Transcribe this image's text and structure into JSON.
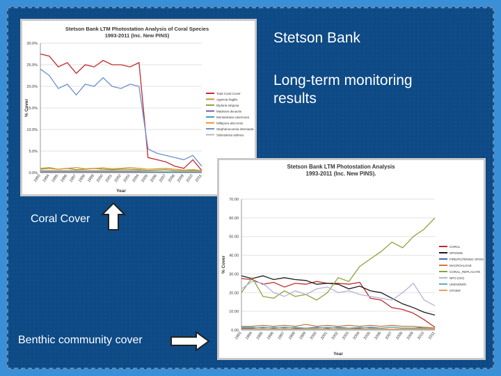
{
  "slide": {
    "heading": "Stetson Bank",
    "subheading_line1": "Long-term monitoring",
    "subheading_line2": "results",
    "label_coral": "Coral Cover",
    "label_benthic": "Benthic community cover"
  },
  "colors": {
    "background": "#0d4a86",
    "border": "#3b8fd6"
  },
  "chart_data": [
    {
      "type": "line",
      "title": "Stetson Bank LTM Photostation Analysis of Coral Species",
      "subtitle": "1993-2011 (Inc. New PINS)",
      "xlabel": "Year",
      "ylabel": "% Cover",
      "ylim": [
        0,
        30
      ],
      "yticks": [
        "0.0%",
        "5.0%",
        "10.0%",
        "15.0%",
        "20.0%",
        "25.0%",
        "30.0%"
      ],
      "categories": [
        "1993",
        "1994",
        "1995",
        "1996",
        "1997",
        "1998",
        "1999",
        "2000",
        "2001",
        "2002",
        "2003",
        "2004",
        "2005",
        "2006",
        "2007",
        "2008",
        "2009",
        "2010",
        "2011"
      ],
      "legend_position": "right",
      "series": [
        {
          "name": "Total Coral Cover",
          "color": "#c0282d",
          "values": [
            27.5,
            27.0,
            24.5,
            25.5,
            23.0,
            25.0,
            24.5,
            26.0,
            25.0,
            25.0,
            24.5,
            25.5,
            3.5,
            3.0,
            2.5,
            1.5,
            1.0,
            3.0,
            0.5
          ]
        },
        {
          "name": "Agaricia fragilis",
          "color": "#d98a3a",
          "values": [
            0.5,
            0.5,
            0.5,
            0.5,
            0.5,
            0.5,
            0.5,
            0.5,
            0.5,
            0.5,
            0.5,
            0.5,
            0.3,
            0.3,
            0.3,
            0.3,
            0.3,
            0.3,
            0.2
          ]
        },
        {
          "name": "Diploria strigosa",
          "color": "#8aa33a",
          "values": [
            0.8,
            1.0,
            0.8,
            1.0,
            0.7,
            0.8,
            1.0,
            0.8,
            0.7,
            0.8,
            0.8,
            0.7,
            0.5,
            0.6,
            0.7,
            0.5,
            0.4,
            0.5,
            0.4
          ]
        },
        {
          "name": "Madracis decactis",
          "color": "#7b5aa6",
          "values": [
            0.2,
            0.2,
            0.2,
            0.2,
            0.2,
            0.2,
            0.2,
            0.2,
            0.2,
            0.2,
            0.2,
            0.2,
            0.1,
            0.1,
            0.1,
            0.1,
            0.1,
            0.1,
            0.1
          ]
        },
        {
          "name": "Montastraea cavernosa",
          "color": "#3aa0b4",
          "values": [
            0.3,
            0.3,
            0.3,
            0.3,
            0.3,
            0.3,
            0.3,
            0.3,
            0.3,
            0.3,
            0.3,
            0.3,
            0.2,
            0.2,
            0.2,
            0.2,
            0.2,
            0.2,
            0.2
          ]
        },
        {
          "name": "Millepora alcicornis",
          "color": "#e0962e",
          "values": [
            1.0,
            1.2,
            0.8,
            1.0,
            1.2,
            0.9,
            1.0,
            1.1,
            0.9,
            1.0,
            1.2,
            1.0,
            0.8,
            0.9,
            1.0,
            0.8,
            0.6,
            0.7,
            0.5
          ]
        },
        {
          "name": "Stephanocoenia intersepta",
          "color": "#6a8fd0",
          "values": [
            24.0,
            22.5,
            19.5,
            20.5,
            18.0,
            20.5,
            20.0,
            22.0,
            20.0,
            19.5,
            20.5,
            20.0,
            5.5,
            4.5,
            4.0,
            3.5,
            3.0,
            4.0,
            1.5
          ]
        },
        {
          "name": "Siderastrea siderea",
          "color": "#b8b8b8",
          "values": [
            0.4,
            0.4,
            0.4,
            0.4,
            0.4,
            0.4,
            0.4,
            0.4,
            0.4,
            0.4,
            0.4,
            0.4,
            0.3,
            0.3,
            0.3,
            0.3,
            0.3,
            0.3,
            0.3
          ]
        }
      ]
    },
    {
      "type": "line",
      "title": "Stetson Bank LTM Photostation Analysis",
      "subtitle": "1993-2011 (Inc. New PINS).",
      "xlabel": "Year",
      "ylabel": "% Cover",
      "ylim": [
        0,
        70
      ],
      "yticks": [
        "0.00",
        "10.00",
        "20.00",
        "30.00",
        "40.00",
        "50.00",
        "60.00",
        "70.00"
      ],
      "categories": [
        "1993",
        "1994",
        "1995",
        "1996",
        "1997",
        "1998",
        "1999",
        "2000",
        "2001",
        "2002",
        "2003",
        "2004",
        "2005",
        "2006",
        "2007",
        "2008",
        "2009",
        "2010",
        "2011"
      ],
      "legend_position": "right",
      "series": [
        {
          "name": "CORAL",
          "color": "#c0282d",
          "values": [
            27.5,
            27.0,
            24.5,
            25.5,
            23.0,
            25.0,
            24.5,
            26.0,
            25.0,
            25.0,
            24.5,
            25.5,
            17.0,
            16.0,
            12.0,
            11.0,
            9.0,
            5.5,
            1.5
          ]
        },
        {
          "name": "SPONGE",
          "color": "#1a1a1a",
          "values": [
            29.0,
            27.5,
            29.0,
            27.0,
            28.0,
            27.0,
            26.5,
            24.5,
            25.0,
            24.5,
            22.0,
            23.5,
            21.0,
            20.0,
            17.0,
            14.0,
            12.0,
            9.5,
            8.0
          ]
        },
        {
          "name": "FIRE/FILTERING SPONGE",
          "color": "#3a6fb0",
          "values": [
            1.0,
            1.0,
            1.5,
            1.0,
            1.5,
            1.0,
            1.0,
            1.5,
            1.0,
            1.5,
            1.0,
            1.0,
            1.5,
            1.0,
            1.5,
            1.0,
            1.0,
            1.5,
            1.0
          ]
        },
        {
          "name": "MACROALGAE",
          "color": "#d07a2a",
          "values": [
            2.0,
            2.0,
            2.5,
            2.0,
            2.5,
            2.0,
            3.0,
            2.0,
            2.5,
            2.0,
            2.5,
            2.0,
            2.5,
            2.0,
            2.5,
            2.0,
            2.0,
            1.5,
            1.0
          ]
        },
        {
          "name": "CORAL_REPLACATE",
          "color": "#8aa33a",
          "values": [
            20.0,
            28.0,
            18.0,
            17.0,
            21.0,
            18.0,
            19.0,
            16.0,
            20.0,
            28.0,
            26.0,
            34.0,
            38.0,
            42.0,
            47.0,
            44.0,
            50.0,
            54.0,
            60.0
          ]
        },
        {
          "name": "NPO (OO)",
          "color": "#b4b4d8",
          "values": [
            22.0,
            26.0,
            25.0,
            20.0,
            18.0,
            21.0,
            19.0,
            22.0,
            23.0,
            20.0,
            21.0,
            19.0,
            18.0,
            17.0,
            16.0,
            20.0,
            25.0,
            16.0,
            13.0
          ]
        },
        {
          "name": "UNKNOWN",
          "color": "#5ab0c8",
          "values": [
            1.5,
            1.5,
            1.0,
            1.5,
            1.0,
            1.5,
            1.0,
            1.0,
            1.5,
            1.0,
            1.0,
            1.5,
            1.0,
            1.0,
            1.5,
            1.0,
            1.0,
            1.0,
            0.5
          ]
        },
        {
          "name": "OTHER",
          "color": "#e8a05a",
          "values": [
            0.5,
            0.5,
            0.5,
            0.5,
            0.5,
            0.5,
            0.5,
            0.5,
            0.5,
            0.5,
            0.5,
            0.5,
            0.5,
            0.5,
            0.5,
            0.5,
            0.5,
            0.5,
            0.5
          ]
        }
      ]
    }
  ]
}
